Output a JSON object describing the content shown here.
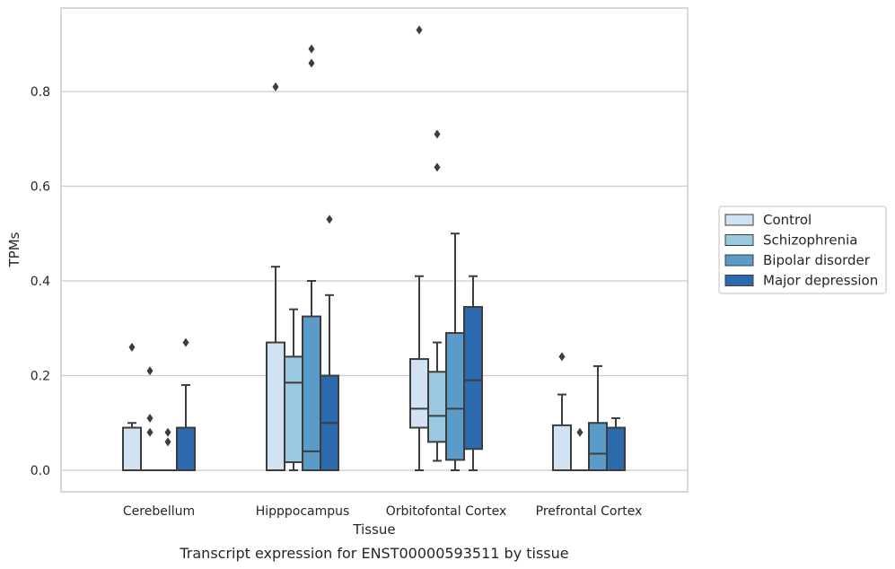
{
  "chart_data": {
    "type": "boxplot",
    "xlabel": "Tissue",
    "ylabel": "TPMs",
    "caption": "Transcript expression for ENST00000593511 by tissue",
    "ylim": [
      -0.045,
      0.98
    ],
    "yticks": [
      0.0,
      0.2,
      0.4,
      0.6,
      0.8
    ],
    "ytick_labels": [
      "0.0",
      "0.2",
      "0.4",
      "0.6",
      "0.8"
    ],
    "grid": "horizontal",
    "legend_position": "right",
    "categories": [
      "Cerebellum",
      "Hipppocampus",
      "Orbitofontal Cortex",
      "Prefrontal Cortex"
    ],
    "series": [
      {
        "name": "Control",
        "color": "#d1e2f2",
        "boxes": [
          {
            "whislo": 0.0,
            "q1": 0.0,
            "med": 0.0,
            "q3": 0.09,
            "whishi": 0.1,
            "fliers": [
              0.26
            ]
          },
          {
            "whislo": 0.0,
            "q1": 0.0,
            "med": 0.0,
            "q3": 0.27,
            "whishi": 0.43,
            "fliers": [
              0.81
            ]
          },
          {
            "whislo": 0.0,
            "q1": 0.09,
            "med": 0.13,
            "q3": 0.235,
            "whishi": 0.41,
            "fliers": [
              0.93
            ]
          },
          {
            "whislo": 0.0,
            "q1": 0.0,
            "med": 0.0,
            "q3": 0.095,
            "whishi": 0.16,
            "fliers": [
              0.24
            ]
          }
        ]
      },
      {
        "name": "Schizophrenia",
        "color": "#9ac8e0",
        "boxes": [
          {
            "whislo": 0.0,
            "q1": 0.0,
            "med": 0.0,
            "q3": 0.0,
            "whishi": 0.0,
            "fliers": [
              0.21,
              0.11,
              0.08
            ]
          },
          {
            "whislo": 0.0,
            "q1": 0.017,
            "med": 0.185,
            "q3": 0.24,
            "whishi": 0.34,
            "fliers": []
          },
          {
            "whislo": 0.02,
            "q1": 0.06,
            "med": 0.115,
            "q3": 0.208,
            "whishi": 0.27,
            "fliers": [
              0.71,
              0.64
            ]
          },
          {
            "whislo": 0.0,
            "q1": 0.0,
            "med": 0.0,
            "q3": 0.0,
            "whishi": 0.0,
            "fliers": [
              0.08
            ]
          }
        ]
      },
      {
        "name": "Bipolar disorder",
        "color": "#5a9bc9",
        "boxes": [
          {
            "whislo": 0.0,
            "q1": 0.0,
            "med": 0.0,
            "q3": 0.0,
            "whishi": 0.0,
            "fliers": [
              0.08,
              0.06
            ]
          },
          {
            "whislo": 0.0,
            "q1": 0.0,
            "med": 0.04,
            "q3": 0.325,
            "whishi": 0.4,
            "fliers": [
              0.89,
              0.86
            ]
          },
          {
            "whislo": 0.0,
            "q1": 0.022,
            "med": 0.13,
            "q3": 0.29,
            "whishi": 0.5,
            "fliers": []
          },
          {
            "whislo": 0.0,
            "q1": 0.0,
            "med": 0.035,
            "q3": 0.1,
            "whishi": 0.22,
            "fliers": []
          }
        ]
      },
      {
        "name": "Major depression",
        "color": "#2a6aad",
        "boxes": [
          {
            "whislo": 0.0,
            "q1": 0.0,
            "med": 0.0,
            "q3": 0.09,
            "whishi": 0.18,
            "fliers": [
              0.27
            ]
          },
          {
            "whislo": 0.0,
            "q1": 0.0,
            "med": 0.1,
            "q3": 0.2,
            "whishi": 0.37,
            "fliers": [
              0.53
            ]
          },
          {
            "whislo": 0.0,
            "q1": 0.045,
            "med": 0.19,
            "q3": 0.345,
            "whishi": 0.41,
            "fliers": []
          },
          {
            "whislo": 0.0,
            "q1": 0.0,
            "med": 0.0,
            "q3": 0.09,
            "whishi": 0.11,
            "fliers": []
          }
        ]
      }
    ]
  }
}
